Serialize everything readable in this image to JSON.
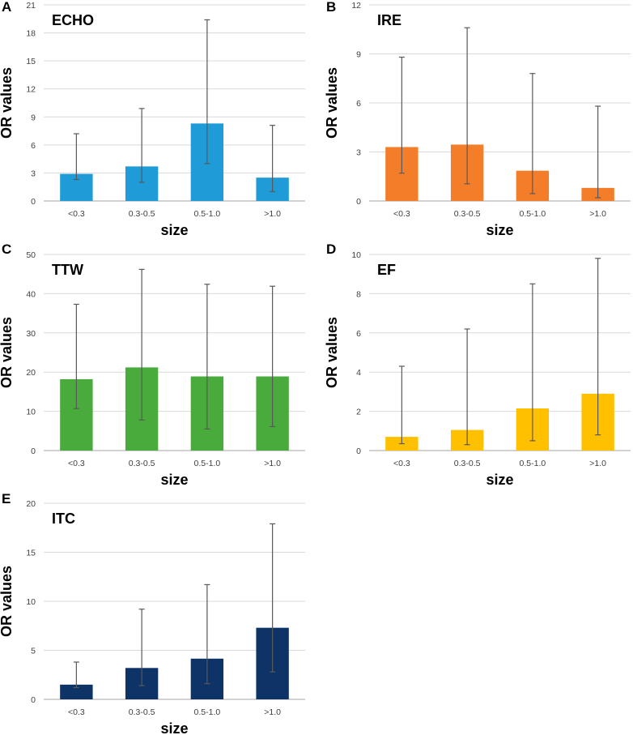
{
  "chart_data": [
    {
      "panel": "A",
      "type": "bar",
      "title": "ECHO",
      "color": "#1f9bd7",
      "xlabel": "size",
      "ylabel": "OR values",
      "categories": [
        "<0.3",
        "0.3-0.5",
        "0.5-1.0",
        ">1.0"
      ],
      "values": [
        2.9,
        3.7,
        8.3,
        2.5
      ],
      "error_low": [
        2.3,
        2.0,
        4.0,
        1.0
      ],
      "error_high": [
        7.2,
        9.9,
        19.4,
        8.1
      ],
      "ylim": [
        0,
        21
      ],
      "yticks": [
        0,
        3,
        6,
        9,
        12,
        15,
        18,
        21
      ]
    },
    {
      "panel": "B",
      "type": "bar",
      "title": "IRE",
      "color": "#f47d2a",
      "xlabel": "size",
      "ylabel": "OR values",
      "categories": [
        "<0.3",
        "0.3-0.5",
        "0.5-1.0",
        ">1.0"
      ],
      "values": [
        3.3,
        3.45,
        1.85,
        0.8
      ],
      "error_low": [
        1.7,
        1.05,
        0.45,
        0.2
      ],
      "error_high": [
        8.8,
        10.6,
        7.8,
        5.8
      ],
      "ylim": [
        0,
        12
      ],
      "yticks": [
        0,
        3,
        6,
        9,
        12
      ]
    },
    {
      "panel": "C",
      "type": "bar",
      "title": "TTW",
      "color": "#4aab3d",
      "xlabel": "size",
      "ylabel": "OR values",
      "categories": [
        "<0.3",
        "0.3-0.5",
        "0.5-1.0",
        ">1.0"
      ],
      "values": [
        18.2,
        21.2,
        18.9,
        18.9
      ],
      "error_low": [
        10.7,
        7.8,
        5.5,
        6.1
      ],
      "error_high": [
        37.3,
        46.2,
        42.4,
        41.9
      ],
      "ylim": [
        0,
        50
      ],
      "yticks": [
        0,
        10,
        20,
        30,
        40,
        50
      ]
    },
    {
      "panel": "D",
      "type": "bar",
      "title": "EF",
      "color": "#ffc000",
      "xlabel": "size",
      "ylabel": "OR values",
      "categories": [
        "<0.3",
        "0.3-0.5",
        "0.5-1.0",
        ">1.0"
      ],
      "values": [
        0.7,
        1.05,
        2.15,
        2.9
      ],
      "error_low": [
        0.35,
        0.3,
        0.5,
        0.8
      ],
      "error_high": [
        4.3,
        6.2,
        8.5,
        9.8
      ],
      "ylim": [
        0,
        10
      ],
      "yticks": [
        0,
        2,
        4,
        6,
        8,
        10
      ]
    },
    {
      "panel": "E",
      "type": "bar",
      "title": "ITC",
      "color": "#0d3367",
      "xlabel": "size",
      "ylabel": "OR values",
      "categories": [
        "<0.3",
        "0.3-0.5",
        "0.5-1.0",
        ">1.0"
      ],
      "values": [
        1.5,
        3.2,
        4.15,
        7.3
      ],
      "error_low": [
        1.2,
        1.4,
        1.6,
        2.8
      ],
      "error_high": [
        3.8,
        9.2,
        11.7,
        17.9
      ],
      "ylim": [
        0,
        20
      ],
      "yticks": [
        0,
        5,
        10,
        15,
        20
      ]
    }
  ]
}
